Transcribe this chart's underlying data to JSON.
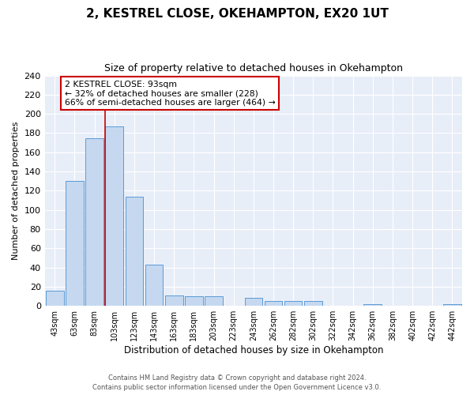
{
  "title": "2, KESTREL CLOSE, OKEHAMPTON, EX20 1UT",
  "subtitle": "Size of property relative to detached houses in Okehampton",
  "xlabel": "Distribution of detached houses by size in Okehampton",
  "ylabel": "Number of detached properties",
  "bar_labels": [
    "43sqm",
    "63sqm",
    "83sqm",
    "103sqm",
    "123sqm",
    "143sqm",
    "163sqm",
    "183sqm",
    "203sqm",
    "223sqm",
    "243sqm",
    "262sqm",
    "282sqm",
    "302sqm",
    "322sqm",
    "342sqm",
    "362sqm",
    "382sqm",
    "402sqm",
    "422sqm",
    "442sqm"
  ],
  "bar_values": [
    16,
    130,
    175,
    187,
    114,
    43,
    11,
    10,
    10,
    0,
    8,
    5,
    5,
    5,
    0,
    0,
    2,
    0,
    0,
    0,
    2
  ],
  "bar_color": "#c5d8f0",
  "bar_edge_color": "#5b9bd5",
  "vline_color": "#cc0000",
  "ylim": [
    0,
    240
  ],
  "yticks": [
    0,
    20,
    40,
    60,
    80,
    100,
    120,
    140,
    160,
    180,
    200,
    220,
    240
  ],
  "annotation_title": "2 KESTREL CLOSE: 93sqm",
  "annotation_line1": "← 32% of detached houses are smaller (228)",
  "annotation_line2": "66% of semi-detached houses are larger (464) →",
  "annotation_box_color": "#ffffff",
  "annotation_box_edge": "#cc0000",
  "footer_line1": "Contains HM Land Registry data © Crown copyright and database right 2024.",
  "footer_line2": "Contains public sector information licensed under the Open Government Licence v3.0.",
  "bg_color": "#e8eef8",
  "title_fontsize": 11,
  "subtitle_fontsize": 9
}
